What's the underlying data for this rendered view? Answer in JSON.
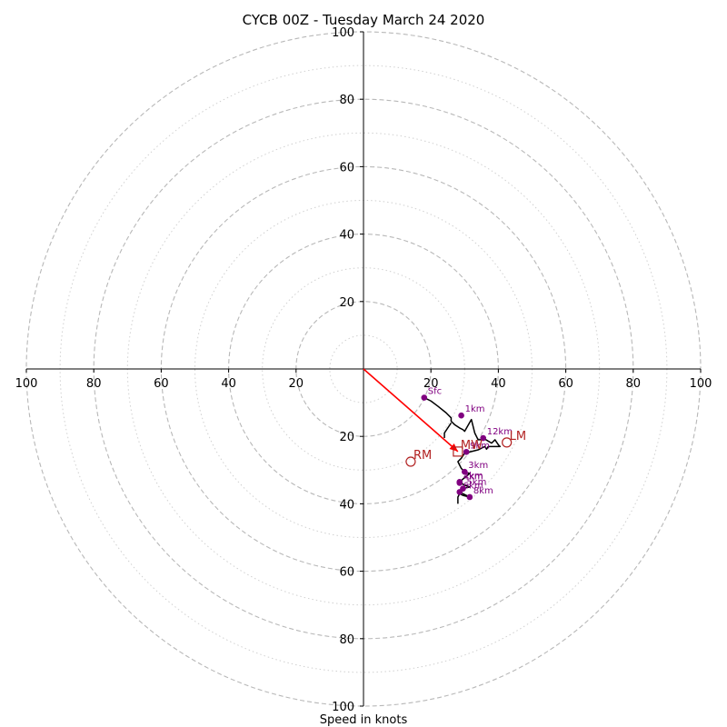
{
  "chart_data": {
    "type": "scatter",
    "title": "CYCB 00Z - Tuesday March 24 2020",
    "xlabel": "Speed in knots",
    "ylabel": "",
    "axis_range": [
      -100,
      100
    ],
    "x_ticks": [
      -100,
      -80,
      -60,
      -40,
      -20,
      20,
      40,
      60,
      80,
      100
    ],
    "y_ticks": [
      -100,
      -80,
      -60,
      -40,
      -20,
      20,
      40,
      60,
      80,
      100
    ],
    "major_rings": [
      20,
      40,
      60,
      80,
      100
    ],
    "minor_rings": [
      10,
      30,
      50,
      70,
      90
    ],
    "grid": true,
    "colors": {
      "hodograph": "#000000",
      "height_markers": "#800080",
      "storm_motion": "#b22222",
      "shear_vector": "#ff0000",
      "major_ring": "#b8b8b8",
      "minor_ring": "#d0d0d0"
    },
    "hodograph_trace": [
      [
        18,
        -8.5
      ],
      [
        20,
        -9.5
      ],
      [
        22,
        -11
      ],
      [
        24.5,
        -13
      ],
      [
        26,
        -14.5
      ],
      [
        26,
        -15.5
      ],
      [
        27,
        -16.5
      ],
      [
        28.5,
        -17.5
      ],
      [
        29.5,
        -18
      ],
      [
        30,
        -18.5
      ],
      [
        32,
        -15
      ],
      [
        33,
        -19
      ],
      [
        34,
        -21
      ],
      [
        35,
        -21
      ],
      [
        35.5,
        -20.5
      ],
      [
        38,
        -22
      ],
      [
        39,
        -21
      ],
      [
        40,
        -22.5
      ],
      [
        40.5,
        -23
      ],
      [
        37,
        -23
      ],
      [
        36.5,
        -23.8
      ],
      [
        36,
        -23
      ],
      [
        34,
        -24
      ],
      [
        32,
        -24.5
      ],
      [
        30,
        -25
      ],
      [
        29,
        -26.5
      ],
      [
        28,
        -27.5
      ],
      [
        28.5,
        -28.5
      ],
      [
        29,
        -29.5
      ],
      [
        30,
        -30.5
      ],
      [
        31.5,
        -31
      ],
      [
        28.5,
        -33.5
      ],
      [
        30,
        -34.5
      ],
      [
        31.5,
        -35
      ],
      [
        29.5,
        -35.5
      ],
      [
        28.5,
        -36.5
      ],
      [
        31.5,
        -38
      ],
      [
        29.5,
        -37.5
      ],
      [
        28.5,
        -37
      ],
      [
        28,
        -38
      ],
      [
        28,
        -40
      ]
    ],
    "connector_trace": [
      [
        26,
        -16
      ],
      [
        24,
        -19
      ],
      [
        24,
        -20.5
      ]
    ],
    "height_points": [
      {
        "label": "Sfc",
        "x": 18,
        "y": -8.5
      },
      {
        "label": "1km",
        "x": 29,
        "y": -13.8
      },
      {
        "label": "12km",
        "x": 35.5,
        "y": -20.5
      },
      {
        "label": "9km",
        "x": 30.5,
        "y": -24.6
      },
      {
        "label": "3km",
        "x": 30,
        "y": -30.5
      },
      {
        "label": "7km",
        "x": 28.5,
        "y": -33.5
      },
      {
        "label": "4km",
        "x": 28.5,
        "y": -33.8
      },
      {
        "label": "5km",
        "x": 29.5,
        "y": -35.5
      },
      {
        "label": "6km",
        "x": 28.5,
        "y": -36.5
      },
      {
        "label": "8km",
        "x": 31.5,
        "y": -38
      }
    ],
    "storm_motion": [
      {
        "label": "RM",
        "x": 14,
        "y": -27.5
      },
      {
        "label": "MW",
        "x": 28,
        "y": -24.5
      },
      {
        "label": "LM",
        "x": 42.5,
        "y": -21.8
      }
    ],
    "shear_vector": {
      "from": [
        0,
        0
      ],
      "to": [
        28,
        -24.5
      ]
    }
  }
}
